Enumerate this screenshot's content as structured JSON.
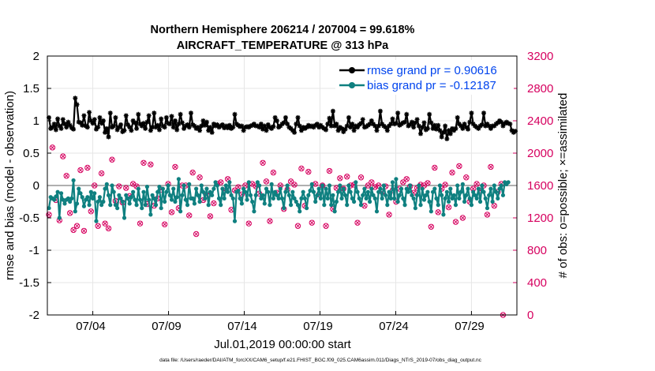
{
  "chart_data": {
    "type": "line",
    "title": "Northern Hemisphere 206214 / 207004 = 99.618%",
    "subtitle": "AIRCRAFT_TEMPERATURE @ 313 hPa",
    "ylabel": "rmse and bias (model - observation)",
    "ylabel_right": "# of obs: o=possible; ×=assimilated",
    "xlabel": "Jul.01,2019 00:00:00 start",
    "footnote": "data file: /Users/raeder/DAI/ATM_forcXX/CAM6_setup/f.e21.FHIST_BGC.f09_025.CAM6assim.011/Diags_NTrS_2019-07/obs_diag_output.nc",
    "ylim": [
      -2,
      2
    ],
    "ylim_right": [
      0,
      3200
    ],
    "yticks": [
      "2",
      "1.5",
      "1",
      "0.5",
      "0",
      "-0.5",
      "-1",
      "-1.5",
      "-2"
    ],
    "yticks_right": [
      "3200",
      "2800",
      "2400",
      "2000",
      "1600",
      "1200",
      "800",
      "400",
      "0"
    ],
    "xticks": [
      "07/04",
      "07/09",
      "07/14",
      "07/19",
      "07/24",
      "07/29"
    ],
    "xtick_days": [
      4,
      9,
      14,
      19,
      24,
      29
    ],
    "xlim_days": [
      1,
      32
    ],
    "colors": {
      "rmse": "#000000",
      "bias": "#0f8080",
      "obs": "#d6005f",
      "legend_text": "#0044ee",
      "zero_line": "#b0b0b0"
    },
    "series": [
      {
        "name": "rmse grand pr = 0.90616",
        "values": [
          1.05,
          0.88,
          0.9,
          0.95,
          0.86,
          1.03,
          0.92,
          0.88,
          1.02,
          0.95,
          0.9,
          0.98,
          0.93,
          0.89,
          0.87,
          1.35,
          1.25,
          0.98,
          0.97,
          0.93,
          1.08,
          0.92,
          0.9,
          1.13,
          1.0,
          0.96,
          1.02,
          0.87,
          0.9,
          1.05,
          0.96,
          1.0,
          0.82,
          0.88,
          0.75,
          1.12,
          0.9,
          0.92,
          1.05,
          0.86,
          0.9,
          0.94,
          0.83,
          0.85,
          1.08,
          0.94,
          0.9,
          0.85,
          1.0,
          0.97,
          0.88,
          1.1,
          0.95,
          0.92,
          0.96,
          0.88,
          0.98,
          1.08,
          0.85,
          0.9,
          1.12,
          0.9,
          0.93,
          0.86,
          1.03,
          0.92,
          0.9,
          1.05,
          0.96,
          0.95,
          1.07,
          0.9,
          1.0,
          0.86,
          0.95,
          1.1,
          0.97,
          0.88,
          0.92,
          0.94,
          0.9,
          1.12,
          0.94,
          0.92,
          0.88,
          0.9,
          0.85,
          0.92,
          1.0,
          0.93,
          0.98,
          0.85,
          0.9,
          0.82,
          0.95,
          0.92,
          0.94,
          0.9,
          0.92,
          0.94,
          0.89,
          0.92,
          0.89,
          0.93,
          0.88,
          0.9,
          1.1,
          0.95,
          0.93,
          0.91,
          0.92,
          0.85,
          0.9,
          0.91,
          0.9,
          0.92,
          0.93,
          0.95,
          0.92,
          0.92,
          0.9,
          0.95,
          0.87,
          0.92,
          0.85,
          0.94,
          0.9,
          0.88,
          0.91,
          1.05,
          1.0,
          0.9,
          0.92,
          0.95,
          0.97,
          1.05,
          0.95,
          0.9,
          0.88,
          0.85,
          0.82,
          0.95,
          1.05,
          0.92,
          0.85,
          0.9,
          0.88,
          0.9,
          0.93,
          0.91,
          0.92,
          0.9,
          0.93,
          0.95,
          0.9,
          0.93,
          0.9,
          0.88,
          0.86,
          0.95,
          1.04,
          0.92,
          1.15,
          0.92,
          0.95,
          0.85,
          0.9,
          0.88,
          0.83,
          0.87,
          0.92,
          1.05,
          0.9,
          0.95,
          0.85,
          0.92,
          0.9,
          0.94,
          0.96,
          1.02,
          0.9,
          0.91,
          0.93,
          0.95,
          1.0,
          0.95,
          0.92,
          0.85,
          0.92,
          1.15,
          0.95,
          0.92,
          0.9,
          0.85,
          0.92,
          0.95,
          1.03,
          0.95,
          0.96,
          1.12,
          0.93,
          0.95,
          0.97,
          0.98,
          1.1,
          0.92,
          0.94,
          0.98,
          0.9,
          0.97,
          1.02,
          0.92,
          0.8,
          0.9,
          0.97,
          0.86,
          0.88,
          1.1,
          0.97,
          0.88,
          0.93,
          0.87,
          0.93,
          0.85,
          0.75,
          0.82,
          0.92,
          0.72,
          0.85,
          0.8,
          0.88,
          0.85,
          0.88,
          1.05,
          0.95,
          0.92,
          0.88,
          0.95,
          0.9,
          0.87,
          0.98,
          1.12,
          0.95,
          0.92,
          0.9,
          0.88,
          0.92,
          0.94,
          1.12,
          0.92,
          0.95,
          0.92,
          0.88,
          0.92,
          0.92,
          0.95,
          0.97,
          1.0,
          0.98,
          0.92,
          0.96,
          0.98,
          0.96,
          0.95,
          0.85,
          0.82,
          0.84
        ]
      },
      {
        "name": "bias grand pr = -0.12187",
        "values": [
          -0.35,
          -0.18,
          -0.2,
          -0.22,
          -0.17,
          -0.1,
          -0.5,
          -0.12,
          -0.22,
          -0.28,
          -0.22,
          -0.2,
          -0.25,
          -0.2,
          0.08,
          -0.4,
          -0.28,
          -0.05,
          -0.12,
          -0.18,
          -0.32,
          -0.22,
          -0.18,
          -0.3,
          -0.1,
          -0.2,
          -0.12,
          -0.55,
          -0.25,
          -0.18,
          -0.3,
          -0.25,
          -0.05,
          0.02,
          -0.15,
          -0.3,
          0.0,
          -0.1,
          -0.3,
          -0.35,
          -0.15,
          -0.2,
          -0.25,
          -0.5,
          -0.15,
          -0.2,
          -0.28,
          -0.18,
          -0.1,
          -0.22,
          -0.3,
          -0.05,
          -0.22,
          -0.35,
          -0.1,
          -0.3,
          -0.02,
          -0.22,
          -0.45,
          -0.15,
          -0.2,
          -0.3,
          -0.1,
          -0.02,
          -0.35,
          -0.05,
          -0.25,
          -0.1,
          0.0,
          -0.15,
          -0.22,
          -0.05,
          -0.25,
          -0.18,
          0.1,
          -0.4,
          -0.15,
          0.0,
          -0.22,
          -0.3,
          0.02,
          -0.2,
          -0.2,
          -0.28,
          -0.05,
          -0.15,
          -0.25,
          0.0,
          -0.1,
          -0.2,
          -0.05,
          -0.3,
          -0.1,
          -0.15,
          -0.05,
          0.05,
          0.0,
          -0.2,
          -0.3,
          -0.05,
          -0.2,
          0.0,
          -0.1,
          0.05,
          -0.15,
          -0.2,
          -0.55,
          -0.1,
          -0.08,
          -0.2,
          -0.28,
          -0.05,
          -0.1,
          -0.22,
          0.05,
          -0.15,
          -0.25,
          -0.4,
          -0.15,
          0.05,
          0.0,
          -0.2,
          -0.15,
          -0.28,
          -0.05,
          -0.1,
          -0.3,
          0.02,
          -0.2,
          -0.1,
          -0.15,
          -0.2,
          -0.05,
          -0.2,
          -0.35,
          -0.1,
          0.0,
          -0.15,
          -0.3,
          -0.1,
          -0.2,
          -0.25,
          -0.3,
          -0.4,
          -0.2,
          -0.1,
          -0.2,
          -0.35,
          -0.15,
          -0.08,
          0.02,
          -0.1,
          -0.25,
          -0.15,
          -0.05,
          -0.2,
          0.0,
          -0.3,
          -0.05,
          -0.2,
          0.0,
          -0.3,
          -0.15,
          -0.4,
          -0.25,
          -0.1,
          0.0,
          -0.2,
          -0.05,
          -0.15,
          -0.3,
          0.0,
          -0.1,
          -0.2,
          -0.25,
          0.05,
          -0.1,
          -0.2,
          -0.3,
          -0.15,
          -0.05,
          -0.2,
          -0.1,
          -0.25,
          -0.05,
          -0.15,
          -0.2,
          -0.4,
          -0.1,
          -0.05,
          -0.2,
          0.0,
          -0.15,
          -0.3,
          -0.1,
          -0.2,
          0.05,
          -0.2,
          0.1,
          -0.25,
          -0.15,
          -0.05,
          -0.2,
          -0.3,
          -0.05,
          -0.1,
          0.0,
          -0.15,
          -0.2,
          -0.35,
          -0.15,
          0.0,
          -0.3,
          -0.05,
          -0.22,
          -0.15,
          -0.1,
          -0.25,
          -0.4,
          -0.1,
          -0.05,
          -0.2,
          -0.3,
          0.0,
          -0.15,
          -0.45,
          -0.2,
          -0.1,
          -0.25,
          -0.05,
          -0.2,
          -0.15,
          -0.3,
          0.0,
          -0.2,
          -0.1,
          0.02,
          -0.25,
          -0.15,
          -0.05,
          -0.2,
          -0.3,
          -0.1,
          -0.15,
          -0.2,
          -0.05,
          -0.25,
          0.0,
          -0.1,
          -0.2,
          -0.35,
          -0.15,
          -0.05,
          -0.25,
          0.0,
          -0.1,
          -0.2,
          -0.05,
          0.0,
          -0.15,
          0.05,
          0.02,
          0.05
        ]
      },
      {
        "name": "# of obs (possible / assimilated)",
        "values": [
          1240,
          1670,
          2070,
          1020,
          1420,
          1730,
          1170,
          1310,
          1960,
          1210,
          1720,
          1590,
          1260,
          1780,
          1050,
          2120,
          1100,
          1650,
          1790,
          1400,
          1040,
          1590,
          1820,
          1600,
          1280,
          1890,
          1600,
          1470,
          1100,
          1520,
          1750,
          1470,
          1130,
          1750,
          1070,
          1550,
          1920,
          1530,
          1410,
          1180,
          1590,
          1820,
          1390,
          1080,
          1570,
          1720,
          1470,
          1170,
          1620,
          1780,
          1590,
          1520,
          1130,
          1600,
          1880,
          1480,
          1370,
          1600,
          1860,
          1480,
          1350,
          1150,
          1440,
          1710,
          1550,
          1630,
          1120,
          1800,
          1620,
          1380,
          1270,
          1550,
          1830,
          1610,
          1320,
          1050,
          1600,
          1760,
          1600,
          1460,
          1230,
          1380,
          1760,
          1390,
          1000,
          1500,
          1700,
          1580,
          1420,
          1310,
          1480,
          1750,
          1220,
          1610,
          1380,
          1130,
          1620,
          1530,
          1640,
          1200,
          1540,
          1510,
          1680,
          1380,
          1300,
          1100,
          1540,
          1690,
          1580,
          1260,
          1490,
          1680,
          1600,
          1420,
          1130,
          1290,
          1620,
          1720,
          1590,
          1390,
          1500,
          1650,
          1880,
          1440,
          1650,
          1400,
          1160,
          1580,
          1760,
          1650,
          1510,
          1200,
          1600,
          1830,
          1310,
          1050,
          1550,
          1780,
          1650,
          1230,
          1610,
          1420,
          1100,
          1520,
          1810,
          1640,
          1350,
          1600,
          1770,
          1280,
          1140,
          1460,
          1620,
          1390,
          1490,
          1710,
          1600,
          1360,
          1100,
          1620,
          1780,
          1630,
          1310,
          1200,
          1570,
          1820,
          1690,
          1240,
          1560,
          1650,
          1710,
          1380,
          1600,
          1840,
          1610,
          1310,
          1140,
          1540,
          1700,
          1580,
          1350,
          1140,
          1600,
          1880,
          1640,
          1390,
          1580,
          1720,
          1600,
          1260,
          1520,
          1800,
          1590,
          1370,
          1240,
          1620,
          1540,
          1650,
          1400,
          1030,
          1560,
          1760,
          1640,
          1130,
          1680,
          1390,
          1590,
          1790,
          1510,
          1240,
          1570,
          1720,
          1610,
          1450,
          1600,
          1780,
          1630,
          1300,
          1090,
          1540,
          1820,
          1590,
          1270,
          1180,
          1560,
          1840,
          1610,
          1440,
          1330,
          1680,
          1760,
          1430,
          1150,
          1630,
          1840,
          1590,
          1200,
          1520,
          1700,
          1630,
          1400,
          1080,
          1560,
          1780,
          1620,
          1300,
          1540,
          1790,
          1600,
          1460,
          1240,
          1580,
          1830,
          1610,
          1350,
          1060,
          1520,
          1740,
          1620,
          0
        ]
      }
    ]
  }
}
